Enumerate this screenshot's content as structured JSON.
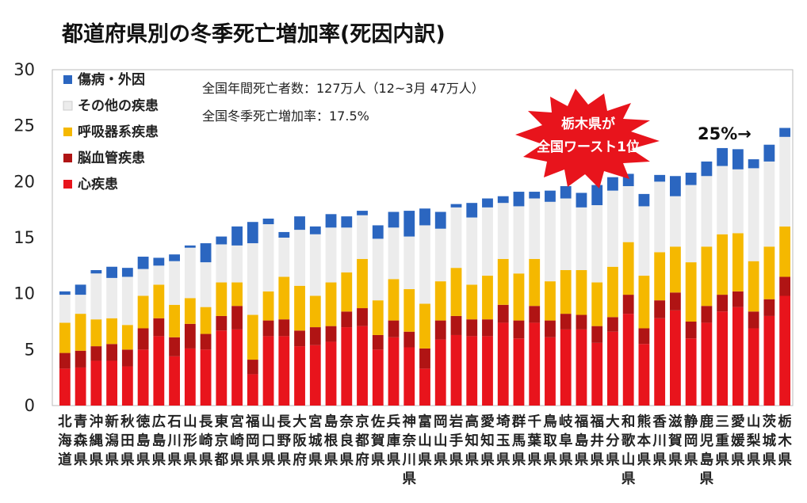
{
  "title": "都道府県別の冬季死亡増加率(死因内訳)",
  "notes": {
    "line1": "全国年間死亡者数：127万人（12~3月 47万人）",
    "line2": "全国冬季死亡増加率：17.5%"
  },
  "badge": {
    "line1": "栃木県が",
    "line2": "全国ワースト1位",
    "color": "#e8141c"
  },
  "callout": "25%→",
  "colors": {
    "heart": "#e8141c",
    "cerebro": "#b01414",
    "resp": "#f5b800",
    "other": "#ececec",
    "injury": "#2b66c0"
  },
  "chart_data": {
    "type": "bar",
    "stacked": true,
    "title": "都道府県別の冬季死亡増加率(死因内訳)",
    "ylim": [
      0,
      30
    ],
    "yticks": [
      0,
      5,
      10,
      15,
      20,
      25,
      30
    ],
    "ytick_labels": [
      "0",
      "5",
      "10",
      "15",
      "20",
      "25",
      "30"
    ],
    "legend_position": "top-left",
    "categories": [
      "北海道",
      "青森県",
      "沖縄県",
      "新潟県",
      "秋田県",
      "徳島県",
      "広島県",
      "石川県",
      "山形県",
      "長崎県",
      "東京都",
      "宮崎県",
      "福岡県",
      "山口県",
      "長野県",
      "大阪府",
      "宮城県",
      "島根県",
      "奈良県",
      "京都府",
      "佐賀県",
      "兵庫県",
      "神奈川県",
      "富山県",
      "岡山県",
      "岩手県",
      "高知県",
      "愛知県",
      "埼玉県",
      "群馬県",
      "千葉県",
      "鳥取県",
      "岐阜県",
      "福島県",
      "福井県",
      "大分県",
      "和歌山県",
      "熊本県",
      "香川県",
      "滋賀県",
      "静岡県",
      "鹿児島県",
      "三重県",
      "愛媛県",
      "山梨県",
      "茨城県",
      "栃木県"
    ],
    "series": [
      {
        "name": "傷病・外因",
        "key": "injury",
        "values": [
          0.3,
          0.9,
          0.3,
          1.0,
          0.8,
          1.1,
          0.7,
          0.6,
          0.2,
          1.7,
          0.7,
          1.7,
          1.9,
          0.5,
          0.5,
          1.2,
          0.7,
          1.2,
          1.0,
          0.4,
          1.2,
          1.4,
          2.3,
          1.5,
          1.5,
          0.3,
          1.3,
          0.8,
          0.6,
          1.3,
          0.6,
          1.0,
          1.1,
          1.3,
          1.8,
          1.2,
          1.1,
          1.1,
          0.6,
          1.8,
          1.1,
          1.3,
          1.6,
          1.8,
          0.8,
          1.5,
          0.8
        ]
      },
      {
        "name": "その他の疾患",
        "key": "other",
        "values": [
          2.5,
          1.7,
          4.1,
          3.6,
          4.3,
          2.4,
          1.7,
          3.9,
          4.5,
          4.0,
          3.4,
          3.3,
          6.4,
          6.0,
          3.5,
          5.0,
          5.5,
          4.9,
          4.0,
          3.9,
          5.5,
          4.6,
          4.7,
          7.0,
          4.7,
          5.4,
          6.0,
          6.1,
          5.0,
          6.0,
          5.4,
          7.1,
          6.4,
          5.6,
          6.9,
          6.8,
          5.0,
          6.2,
          6.3,
          4.5,
          6.9,
          6.3,
          6.1,
          5.7,
          8.3,
          7.6,
          8.0
        ]
      },
      {
        "name": "呼吸器系疾患",
        "key": "resp",
        "values": [
          2.7,
          3.3,
          2.4,
          2.3,
          2.2,
          2.9,
          3.0,
          2.9,
          2.3,
          2.4,
          3.0,
          2.1,
          4.0,
          2.6,
          3.8,
          4.0,
          2.8,
          3.9,
          3.5,
          4.4,
          3.1,
          3.7,
          3.8,
          4.0,
          3.5,
          4.3,
          3.1,
          3.9,
          4.1,
          4.2,
          4.2,
          3.5,
          3.9,
          4.0,
          3.9,
          4.5,
          4.7,
          4.7,
          4.3,
          4.1,
          5.3,
          5.3,
          5.4,
          5.2,
          4.5,
          4.7,
          4.5
        ]
      },
      {
        "name": "脳血管疾患",
        "key": "cerebro",
        "values": [
          1.4,
          1.5,
          1.3,
          1.5,
          1.5,
          1.9,
          1.6,
          1.7,
          2.2,
          1.4,
          1.3,
          2.1,
          1.3,
          1.4,
          1.5,
          1.4,
          1.6,
          1.4,
          1.4,
          1.6,
          1.3,
          1.5,
          1.4,
          1.8,
          1.7,
          1.7,
          1.5,
          1.5,
          1.6,
          1.6,
          1.5,
          1.5,
          1.4,
          1.3,
          1.5,
          1.3,
          1.7,
          1.4,
          1.6,
          1.6,
          1.5,
          1.5,
          1.5,
          1.4,
          1.5,
          1.5,
          1.7
        ]
      },
      {
        "name": "心疾患",
        "key": "heart",
        "values": [
          3.3,
          3.4,
          4.0,
          4.0,
          3.5,
          5.0,
          6.2,
          4.4,
          5.1,
          5.0,
          6.7,
          6.8,
          2.8,
          6.2,
          6.2,
          5.3,
          5.4,
          5.7,
          7.0,
          7.1,
          5.0,
          6.1,
          5.2,
          3.3,
          5.9,
          6.3,
          6.2,
          6.2,
          7.4,
          6.0,
          7.4,
          6.1,
          6.8,
          6.8,
          5.6,
          6.6,
          8.2,
          5.5,
          7.8,
          8.5,
          6.0,
          7.4,
          8.4,
          8.8,
          6.9,
          8.0,
          9.8
        ]
      }
    ],
    "legend_order": [
      "injury",
      "other",
      "resp",
      "cerebro",
      "heart"
    ]
  }
}
